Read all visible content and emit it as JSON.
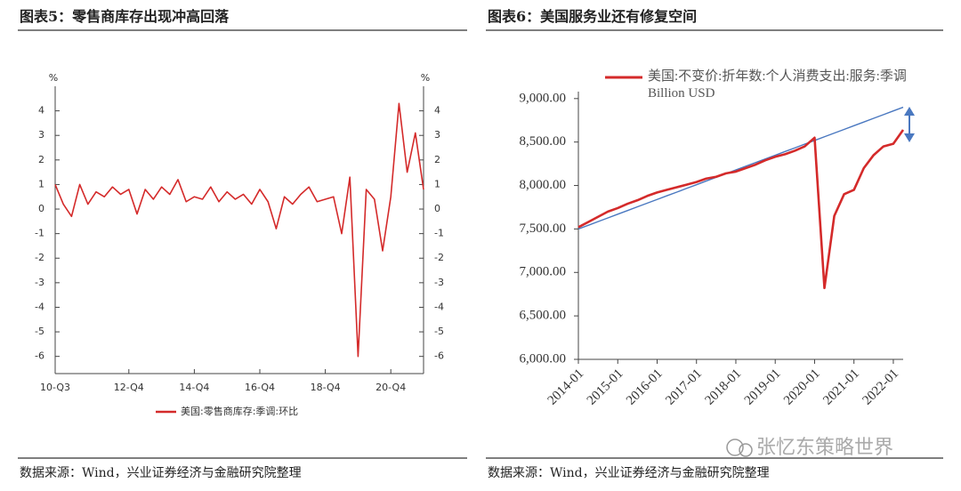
{
  "chart_data": [
    {
      "type": "line",
      "title": "图表5：零售商库存出现冲高回落",
      "ylabel": "%",
      "y2label": "%",
      "categories": [
        "10-Q3",
        null,
        null,
        null,
        null,
        null,
        null,
        null,
        null,
        "12-Q4",
        null,
        null,
        null,
        null,
        null,
        null,
        null,
        "14-Q4",
        null,
        null,
        null,
        null,
        null,
        null,
        null,
        "16-Q4",
        null,
        null,
        null,
        null,
        null,
        null,
        null,
        "18-Q4",
        null,
        null,
        null,
        null,
        null,
        null,
        null,
        "20-Q4",
        null,
        null,
        null,
        null
      ],
      "series": [
        {
          "name": "美国:零售商库存:季调:环比",
          "color": "#d42a2a",
          "values": [
            1.0,
            0.2,
            -0.3,
            1.0,
            0.2,
            0.7,
            0.5,
            0.9,
            0.6,
            0.8,
            -0.2,
            0.8,
            0.4,
            0.9,
            0.6,
            1.2,
            0.3,
            0.5,
            0.4,
            0.9,
            0.3,
            0.7,
            0.4,
            0.6,
            0.2,
            0.8,
            0.3,
            -0.8,
            0.5,
            0.2,
            0.6,
            0.9,
            0.3,
            0.4,
            0.5,
            -1.0,
            1.3,
            -6.0,
            0.8,
            0.4,
            -1.7,
            0.5,
            4.3,
            1.5,
            3.1,
            0.8
          ]
        }
      ],
      "ylim": [
        -6.7,
        5
      ],
      "yticks": [
        -6,
        -5,
        -4,
        -3,
        -2,
        -1,
        0,
        1,
        2,
        3,
        4
      ],
      "y2lim": [
        -6.7,
        5
      ],
      "y2ticks": [
        -6,
        -5,
        -4,
        -3,
        -2,
        -1,
        0,
        1,
        2,
        3,
        4
      ],
      "legend": "bottom",
      "source": "数据来源：Wind，兴业证券经济与金融研究院整理"
    },
    {
      "type": "line",
      "title": "图表6：美国服务业还有修复空间",
      "categories": [
        "2014-01",
        null,
        null,
        null,
        "2015-01",
        null,
        null,
        null,
        "2016-01",
        null,
        null,
        null,
        "2017-01",
        null,
        null,
        null,
        "2018-01",
        null,
        null,
        null,
        "2019-01",
        null,
        null,
        null,
        "2020-01",
        null,
        null,
        null,
        "2021-01",
        null,
        null,
        null,
        "2022-01",
        null
      ],
      "series": [
        {
          "name": "美国:不变价:折年数:个人消费支出:服务:季调 Billion USD",
          "color": "#d42a2a",
          "values": [
            7520,
            7580,
            7640,
            7700,
            7740,
            7790,
            7830,
            7880,
            7920,
            7950,
            7980,
            8010,
            8040,
            8080,
            8100,
            8140,
            8160,
            8200,
            8240,
            8290,
            8330,
            8360,
            8400,
            8450,
            8550,
            6820,
            7650,
            7900,
            7950,
            8200,
            8350,
            8450,
            8480,
            8640
          ]
        },
        {
          "color": "#4a78c0",
          "values": [
            7500,
            7542,
            7585,
            7627,
            7670,
            7712,
            7755,
            7797,
            7839,
            7882,
            7924,
            7967,
            8009,
            8052,
            8094,
            8136,
            8179,
            8221,
            8264,
            8306,
            8348,
            8391,
            8433,
            8476,
            8518,
            8561,
            8603,
            8645,
            8688,
            8730,
            8773,
            8815,
            8858,
            8900
          ]
        }
      ],
      "ylim": [
        6000,
        9080
      ],
      "yticks": [
        {
          "value": 6000,
          "label": "6,000.00"
        },
        {
          "value": 6500,
          "label": "6,500.00"
        },
        {
          "value": 7000,
          "label": "7,000.00"
        },
        {
          "value": 7500,
          "label": "7,500.00"
        },
        {
          "value": 8000,
          "label": "8,000.00"
        },
        {
          "value": 8500,
          "label": "8,500.00"
        },
        {
          "value": 9000,
          "label": "9,000.00"
        }
      ],
      "legend": "upper left",
      "source": "数据来源：Wind，兴业证券经济与金融研究院整理"
    }
  ],
  "watermark": "张忆东策略世界"
}
